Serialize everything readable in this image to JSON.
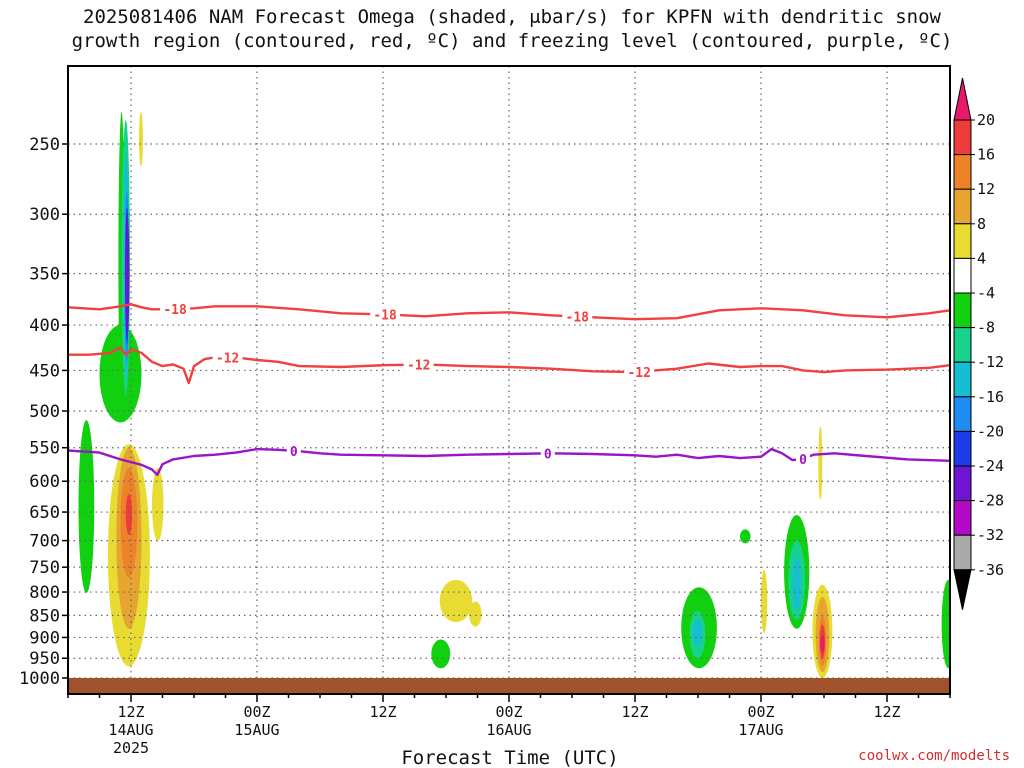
{
  "title_line1": "2025081406 NAM Forecast Omega (shaded, μbar/s) for KPFN with dendritic snow",
  "title_line2": "growth region (contoured, red, ºC) and freezing level (contoured, purple, ºC)",
  "credit": "coolwx.com/modelts",
  "chart_data": {
    "type": "heatmap",
    "title": "2025081406 NAM Forecast Omega (shaded, μbar/s) for KPFN with dendritic snow growth region (contoured, red, ºC) and freezing level (contoured, purple, ºC)",
    "xlabel": "Forecast Time (UTC)",
    "ylabel": "",
    "x_unit": "forecast hour from 2025-08-14 06Z",
    "xlim": [
      0,
      84
    ],
    "x_ticks": [
      {
        "x": 6,
        "label": "12Z",
        "sub1": "14AUG",
        "sub2": "2025"
      },
      {
        "x": 18,
        "label": "00Z",
        "sub1": "15AUG",
        "sub2": ""
      },
      {
        "x": 30,
        "label": "12Z",
        "sub1": "",
        "sub2": ""
      },
      {
        "x": 42,
        "label": "00Z",
        "sub1": "16AUG",
        "sub2": ""
      },
      {
        "x": 54,
        "label": "12Z",
        "sub1": "",
        "sub2": ""
      },
      {
        "x": 66,
        "label": "00Z",
        "sub1": "17AUG",
        "sub2": ""
      },
      {
        "x": 78,
        "label": "12Z",
        "sub1": "",
        "sub2": ""
      }
    ],
    "y_axis": {
      "scale": "log-pressure",
      "unit": "hPa",
      "reversed": true,
      "range": [
        1030,
        195
      ],
      "ticks": [
        250,
        300,
        350,
        400,
        450,
        500,
        550,
        600,
        650,
        700,
        750,
        800,
        850,
        900,
        950,
        1000
      ]
    },
    "grid": true,
    "colorbar": {
      "unit": "μbar/s",
      "labels": [
        "20",
        "16",
        "12",
        "8",
        "4",
        "-4",
        "-8",
        "-12",
        "-16",
        "-20",
        "-24",
        "-28",
        "-32",
        "-36"
      ],
      "bins": [
        {
          "from": 20,
          "to": 24,
          "color": "#e6196b",
          "arrow": true
        },
        {
          "from": 16,
          "to": 20,
          "color": "#ee3c3c"
        },
        {
          "from": 12,
          "to": 16,
          "color": "#ee8228"
        },
        {
          "from": 8,
          "to": 12,
          "color": "#e6a530"
        },
        {
          "from": 4,
          "to": 8,
          "color": "#e8dc32"
        },
        {
          "from": -4,
          "to": 4,
          "color": "#ffffff"
        },
        {
          "from": -8,
          "to": -4,
          "color": "#10d010"
        },
        {
          "from": -12,
          "to": -8,
          "color": "#16d28c"
        },
        {
          "from": -16,
          "to": -12,
          "color": "#16bed2"
        },
        {
          "from": -20,
          "to": -16,
          "color": "#1e8cf0"
        },
        {
          "from": -24,
          "to": -20,
          "color": "#1e3ce6"
        },
        {
          "from": -28,
          "to": -24,
          "color": "#6e14d2"
        },
        {
          "from": -32,
          "to": -28,
          "color": "#b40ac8"
        },
        {
          "from": -36,
          "to": -32,
          "color": "#aaaaaa"
        },
        {
          "from": -40,
          "to": -36,
          "color": "#000000",
          "arrow": true
        }
      ]
    },
    "surface": {
      "p_top": 1000,
      "color": "#a0522d"
    },
    "contours": [
      {
        "level": -18,
        "color": "#f04040",
        "label": "-18",
        "label_x": [
          10.2,
          30.2,
          48.5
        ],
        "points": [
          [
            0,
            382
          ],
          [
            3,
            384
          ],
          [
            5,
            381
          ],
          [
            6,
            379
          ],
          [
            7,
            382
          ],
          [
            8,
            384
          ],
          [
            10,
            384
          ],
          [
            12,
            383
          ],
          [
            14,
            381
          ],
          [
            18,
            381
          ],
          [
            22,
            384
          ],
          [
            26,
            388
          ],
          [
            30,
            389
          ],
          [
            34,
            391
          ],
          [
            38,
            388
          ],
          [
            42,
            387
          ],
          [
            46,
            390
          ],
          [
            50,
            392
          ],
          [
            54,
            394
          ],
          [
            58,
            393
          ],
          [
            62,
            385
          ],
          [
            66,
            383
          ],
          [
            70,
            385
          ],
          [
            74,
            390
          ],
          [
            78,
            392
          ],
          [
            82,
            388
          ],
          [
            84,
            385
          ]
        ]
      },
      {
        "level": -12,
        "color": "#f04040",
        "label": "-12",
        "label_x": [
          15.2,
          33.4,
          54.4
        ],
        "points": [
          [
            0,
            432
          ],
          [
            2,
            432
          ],
          [
            4,
            430
          ],
          [
            5,
            424
          ],
          [
            5.5,
            432
          ],
          [
            6,
            426
          ],
          [
            7,
            430
          ],
          [
            8,
            440
          ],
          [
            9,
            445
          ],
          [
            10,
            443
          ],
          [
            11,
            448
          ],
          [
            11.5,
            465
          ],
          [
            12,
            445
          ],
          [
            13,
            437
          ],
          [
            14,
            435
          ],
          [
            16,
            435
          ],
          [
            18,
            438
          ],
          [
            20,
            440
          ],
          [
            22,
            445
          ],
          [
            26,
            446
          ],
          [
            30,
            444
          ],
          [
            34,
            443
          ],
          [
            38,
            445
          ],
          [
            42,
            446
          ],
          [
            46,
            448
          ],
          [
            50,
            451
          ],
          [
            54,
            452
          ],
          [
            58,
            448
          ],
          [
            61,
            442
          ],
          [
            64,
            446
          ],
          [
            66,
            445
          ],
          [
            68,
            445
          ],
          [
            70,
            450
          ],
          [
            72,
            452
          ],
          [
            74,
            450
          ],
          [
            78,
            449
          ],
          [
            82,
            447
          ],
          [
            84,
            444
          ]
        ]
      },
      {
        "level": 0,
        "color": "#9a14c8",
        "label": "0",
        "label_x": [
          21.5,
          45.7,
          70.0
        ],
        "points": [
          [
            0,
            554
          ],
          [
            3,
            557
          ],
          [
            5,
            567
          ],
          [
            7,
            575
          ],
          [
            8,
            582
          ],
          [
            8.5,
            590
          ],
          [
            9,
            574
          ],
          [
            10,
            567
          ],
          [
            12,
            562
          ],
          [
            14,
            560
          ],
          [
            16,
            557
          ],
          [
            18,
            552
          ],
          [
            20,
            553
          ],
          [
            22,
            555
          ],
          [
            24,
            558
          ],
          [
            26,
            560
          ],
          [
            30,
            561
          ],
          [
            34,
            562
          ],
          [
            38,
            560
          ],
          [
            42,
            559
          ],
          [
            46,
            558
          ],
          [
            50,
            559
          ],
          [
            54,
            561
          ],
          [
            56,
            563
          ],
          [
            58,
            560
          ],
          [
            60,
            565
          ],
          [
            62,
            562
          ],
          [
            64,
            565
          ],
          [
            66,
            563
          ],
          [
            67,
            552
          ],
          [
            68,
            558
          ],
          [
            69,
            568
          ],
          [
            70,
            566
          ],
          [
            71,
            560
          ],
          [
            73,
            558
          ],
          [
            76,
            562
          ],
          [
            80,
            567
          ],
          [
            84,
            569
          ]
        ]
      }
    ],
    "omega_regions": [
      {
        "x": [
          1.0,
          2.5
        ],
        "p": [
          512,
          802
        ],
        "value": -6,
        "color": "#10d010"
      },
      {
        "x": [
          3.0,
          7.0
        ],
        "p": [
          400,
          515
        ],
        "value": -6,
        "color": "#10d010"
      },
      {
        "x": [
          4.8,
          5.4
        ],
        "p": [
          230,
          500
        ],
        "value": -6,
        "color": "#10d010"
      },
      {
        "x": [
          5.1,
          5.9
        ],
        "p": [
          235,
          480
        ],
        "value": -10,
        "color": "#16d28c"
      },
      {
        "x": [
          5.3,
          5.8
        ],
        "p": [
          258,
          460
        ],
        "value": -14,
        "color": "#16bed2"
      },
      {
        "x": [
          5.4,
          5.8
        ],
        "p": [
          282,
          440
        ],
        "value": -18,
        "color": "#1e8cf0"
      },
      {
        "x": [
          5.5,
          5.75
        ],
        "p": [
          295,
          420
        ],
        "value": -22,
        "color": "#1e3ce6"
      },
      {
        "x": [
          5.55,
          5.75
        ],
        "p": [
          300,
          410
        ],
        "value": -26,
        "color": "#6e14d2"
      },
      {
        "x": [
          6.8,
          7.1
        ],
        "p": [
          230,
          265
        ],
        "value": 6,
        "color": "#e8dc32"
      },
      {
        "x": [
          3.8,
          7.8
        ],
        "p": [
          545,
          970
        ],
        "value": 6,
        "color": "#e8dc32"
      },
      {
        "x": [
          4.6,
          7.0
        ],
        "p": [
          550,
          880
        ],
        "value": 10,
        "color": "#e6a530"
      },
      {
        "x": [
          5.0,
          6.6
        ],
        "p": [
          580,
          770
        ],
        "value": 14,
        "color": "#ee8228"
      },
      {
        "x": [
          5.5,
          6.1
        ],
        "p": [
          620,
          690
        ],
        "value": 18,
        "color": "#ee3c3c"
      },
      {
        "x": [
          8.0,
          9.1
        ],
        "p": [
          580,
          700
        ],
        "value": 6,
        "color": "#e8dc32"
      },
      {
        "x": [
          35.4,
          38.5
        ],
        "p": [
          775,
          865
        ],
        "value": 6,
        "color": "#e8dc32"
      },
      {
        "x": [
          38.2,
          39.4
        ],
        "p": [
          820,
          875
        ],
        "value": 6,
        "color": "#e8dc32"
      },
      {
        "x": [
          34.6,
          36.4
        ],
        "p": [
          905,
          975
        ],
        "value": -6,
        "color": "#10d010"
      },
      {
        "x": [
          58.4,
          61.8
        ],
        "p": [
          790,
          975
        ],
        "value": -6,
        "color": "#10d010"
      },
      {
        "x": [
          59.2,
          60.7
        ],
        "p": [
          840,
          950
        ],
        "value": -10,
        "color": "#16d28c"
      },
      {
        "x": [
          59.5,
          60.4
        ],
        "p": [
          860,
          920
        ],
        "value": -14,
        "color": "#16bed2"
      },
      {
        "x": [
          64.0,
          65.0
        ],
        "p": [
          680,
          705
        ],
        "value": -6,
        "color": "#10d010"
      },
      {
        "x": [
          64.1,
          64.9
        ],
        "p": [
          680,
          700
        ],
        "value": -6,
        "color": "#10d010"
      },
      {
        "x": [
          66.0,
          66.6
        ],
        "p": [
          755,
          890
        ],
        "value": 6,
        "color": "#e8dc32"
      },
      {
        "x": [
          68.2,
          70.6
        ],
        "p": [
          655,
          880
        ],
        "value": -6,
        "color": "#10d010"
      },
      {
        "x": [
          68.6,
          70.2
        ],
        "p": [
          700,
          860
        ],
        "value": -10,
        "color": "#16d28c"
      },
      {
        "x": [
          69.0,
          69.8
        ],
        "p": [
          730,
          840
        ],
        "value": -14,
        "color": "#16bed2"
      },
      {
        "x": [
          71.5,
          71.8
        ],
        "p": [
          520,
          630
        ],
        "value": 6,
        "color": "#e8dc32"
      },
      {
        "x": [
          70.9,
          72.8
        ],
        "p": [
          785,
          1000
        ],
        "value": 6,
        "color": "#e8dc32"
      },
      {
        "x": [
          71.2,
          72.5
        ],
        "p": [
          810,
          985
        ],
        "value": 10,
        "color": "#e6a530"
      },
      {
        "x": [
          71.5,
          72.2
        ],
        "p": [
          850,
          970
        ],
        "value": 14,
        "color": "#ee8228"
      },
      {
        "x": [
          71.6,
          72.1
        ],
        "p": [
          870,
          950
        ],
        "value": 18,
        "color": "#ee3c3c"
      },
      {
        "x": [
          71.7,
          72.0
        ],
        "p": [
          895,
          935
        ],
        "value": 22,
        "color": "#e6196b"
      },
      {
        "x": [
          83.2,
          84.5
        ],
        "p": [
          775,
          975
        ],
        "value": -6,
        "color": "#10d010"
      }
    ]
  }
}
